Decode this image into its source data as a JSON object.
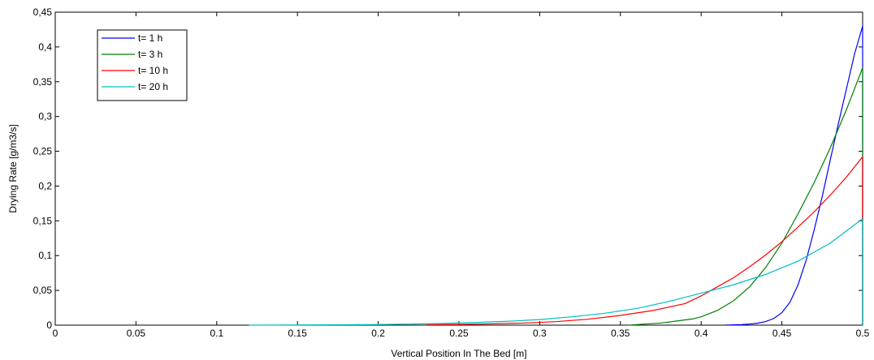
{
  "chart_data": {
    "type": "line",
    "xlabel": "Vertical Position In The Bed  [m]",
    "ylabel": "Drying Rate [g/m3/s]",
    "xlim": [
      0,
      0.5
    ],
    "ylim": [
      0,
      0.45
    ],
    "x_ticks": [
      "0",
      "0.05",
      "0.1",
      "0.15",
      "0.2",
      "0.25",
      "0.3",
      "0.35",
      "0.4",
      "0.45",
      "0.5"
    ],
    "y_ticks": [
      "0",
      "0,05",
      "0,1",
      "0,15",
      "0,2",
      "0,25",
      "0,3",
      "0,35",
      "0,4",
      "0,45"
    ],
    "grid": false,
    "legend_position": "top-left",
    "series": [
      {
        "name": "t= 1 h",
        "color": "#0000ff",
        "points": [
          [
            0.415,
            0
          ],
          [
            0.42,
            0.0004
          ],
          [
            0.425,
            0.0008
          ],
          [
            0.43,
            0.0015
          ],
          [
            0.435,
            0.0028
          ],
          [
            0.44,
            0.0052
          ],
          [
            0.445,
            0.0096
          ],
          [
            0.45,
            0.018
          ],
          [
            0.455,
            0.033
          ],
          [
            0.46,
            0.058
          ],
          [
            0.465,
            0.093
          ],
          [
            0.47,
            0.137
          ],
          [
            0.475,
            0.185
          ],
          [
            0.48,
            0.238
          ],
          [
            0.485,
            0.29
          ],
          [
            0.49,
            0.34
          ],
          [
            0.495,
            0.39
          ],
          [
            0.5,
            0.43
          ]
        ]
      },
      {
        "name": "t= 3 h",
        "color": "#008000",
        "points": [
          [
            0.355,
            0
          ],
          [
            0.365,
            0.0015
          ],
          [
            0.375,
            0.003
          ],
          [
            0.385,
            0.006
          ],
          [
            0.395,
            0.009
          ],
          [
            0.4,
            0.012
          ],
          [
            0.41,
            0.021
          ],
          [
            0.42,
            0.035
          ],
          [
            0.43,
            0.055
          ],
          [
            0.44,
            0.083
          ],
          [
            0.45,
            0.118
          ],
          [
            0.46,
            0.16
          ],
          [
            0.47,
            0.205
          ],
          [
            0.48,
            0.255
          ],
          [
            0.49,
            0.31
          ],
          [
            0.5,
            0.37
          ]
        ]
      },
      {
        "name": "t= 10 h",
        "color": "#ff0000",
        "points": [
          [
            0.23,
            0.0006
          ],
          [
            0.25,
            0.001
          ],
          [
            0.27,
            0.0018
          ],
          [
            0.29,
            0.003
          ],
          [
            0.31,
            0.005
          ],
          [
            0.33,
            0.0085
          ],
          [
            0.35,
            0.014
          ],
          [
            0.37,
            0.021
          ],
          [
            0.39,
            0.031
          ],
          [
            0.4,
            0.042
          ],
          [
            0.41,
            0.055
          ],
          [
            0.42,
            0.068
          ],
          [
            0.43,
            0.084
          ],
          [
            0.44,
            0.101
          ],
          [
            0.45,
            0.12
          ],
          [
            0.46,
            0.141
          ],
          [
            0.47,
            0.163
          ],
          [
            0.48,
            0.187
          ],
          [
            0.49,
            0.213
          ],
          [
            0.5,
            0.242
          ]
        ]
      },
      {
        "name": "t= 20 h",
        "color": "#00bfbf",
        "points": [
          [
            0.12,
            0
          ],
          [
            0.15,
            0.0003
          ],
          [
            0.18,
            0.0006
          ],
          [
            0.2,
            0.0009
          ],
          [
            0.22,
            0.0015
          ],
          [
            0.24,
            0.0025
          ],
          [
            0.26,
            0.0038
          ],
          [
            0.28,
            0.0055
          ],
          [
            0.3,
            0.008
          ],
          [
            0.32,
            0.012
          ],
          [
            0.34,
            0.017
          ],
          [
            0.36,
            0.024
          ],
          [
            0.38,
            0.034
          ],
          [
            0.4,
            0.046
          ],
          [
            0.42,
            0.058
          ],
          [
            0.44,
            0.073
          ],
          [
            0.46,
            0.092
          ],
          [
            0.48,
            0.118
          ],
          [
            0.5,
            0.153
          ]
        ]
      }
    ]
  }
}
